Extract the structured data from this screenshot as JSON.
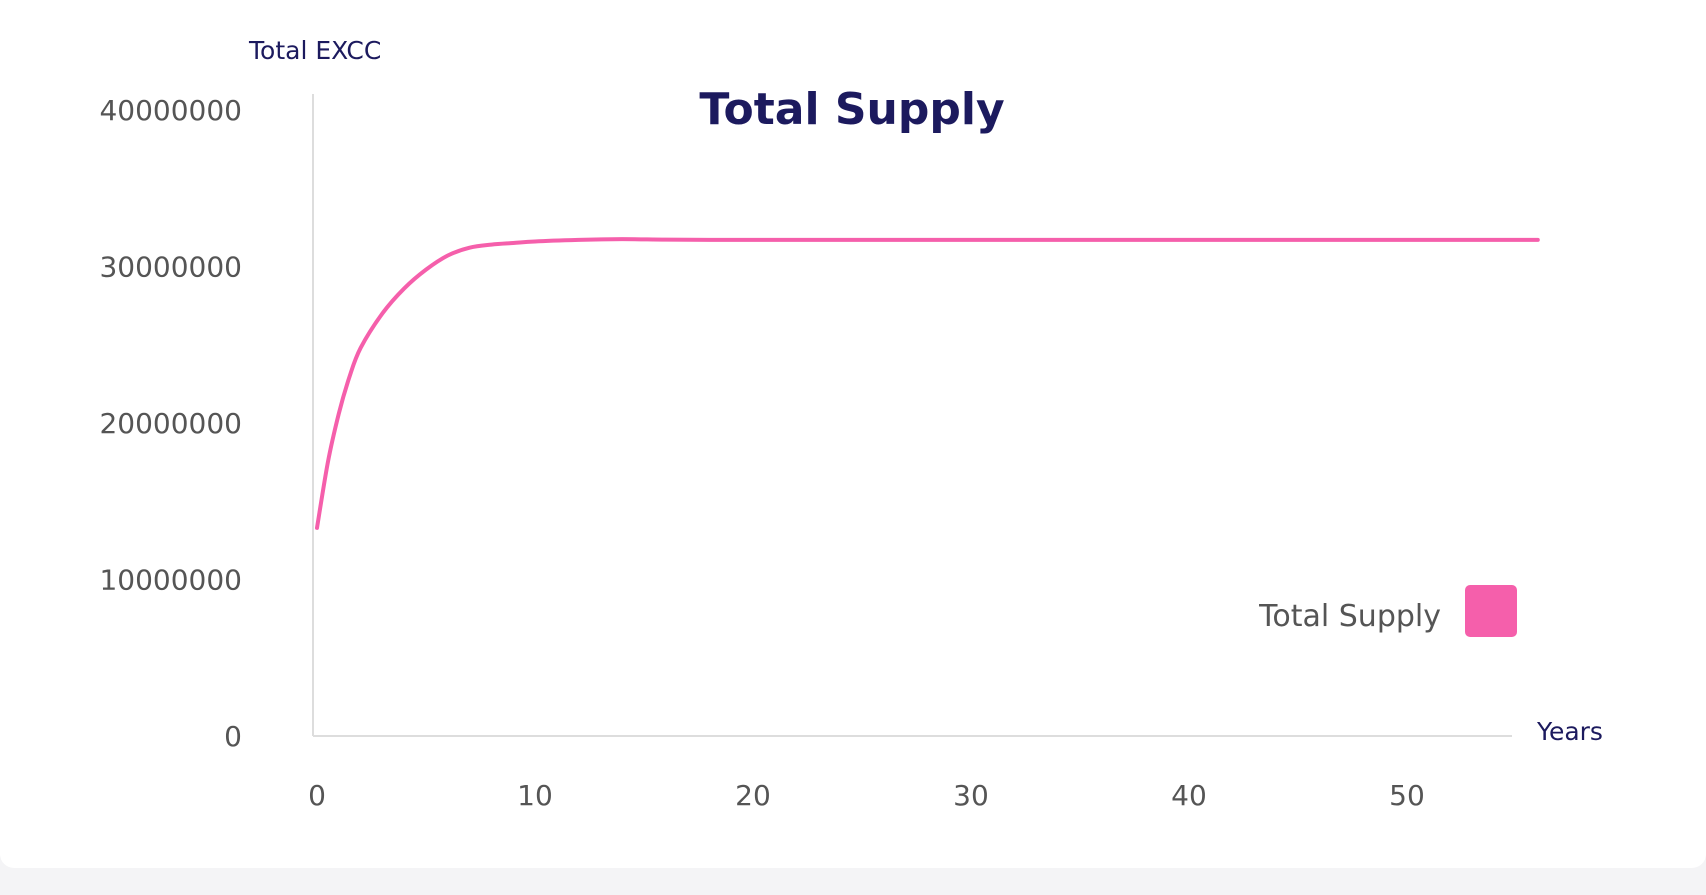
{
  "chart_data": {
    "type": "line",
    "title": "Total Supply",
    "ylabel": "Total EXCC",
    "xlabel": "Years",
    "xlim": [
      0,
      56
    ],
    "ylim": [
      0,
      40000000
    ],
    "x_ticks": [
      "0",
      "10",
      "20",
      "30",
      "40",
      "50"
    ],
    "y_ticks": [
      "0",
      "10000000",
      "20000000",
      "30000000",
      "40000000"
    ],
    "grid": false,
    "legend_position": "bottom-right",
    "series": [
      {
        "name": "Total Supply",
        "color": "#f55fab",
        "x": [
          0,
          0.5,
          1,
          1.5,
          2,
          3,
          4,
          5,
          6,
          7,
          8,
          9,
          10,
          12,
          14,
          16,
          18,
          20,
          25,
          30,
          35,
          40,
          45,
          50,
          56
        ],
        "values": [
          13300000,
          17500000,
          20600000,
          23000000,
          24800000,
          27000000,
          28600000,
          29800000,
          30700000,
          31200000,
          31400000,
          31500000,
          31600000,
          31700000,
          31750000,
          31720000,
          31700000,
          31700000,
          31700000,
          31700000,
          31700000,
          31700000,
          31700000,
          31700000,
          31700000
        ]
      }
    ]
  }
}
